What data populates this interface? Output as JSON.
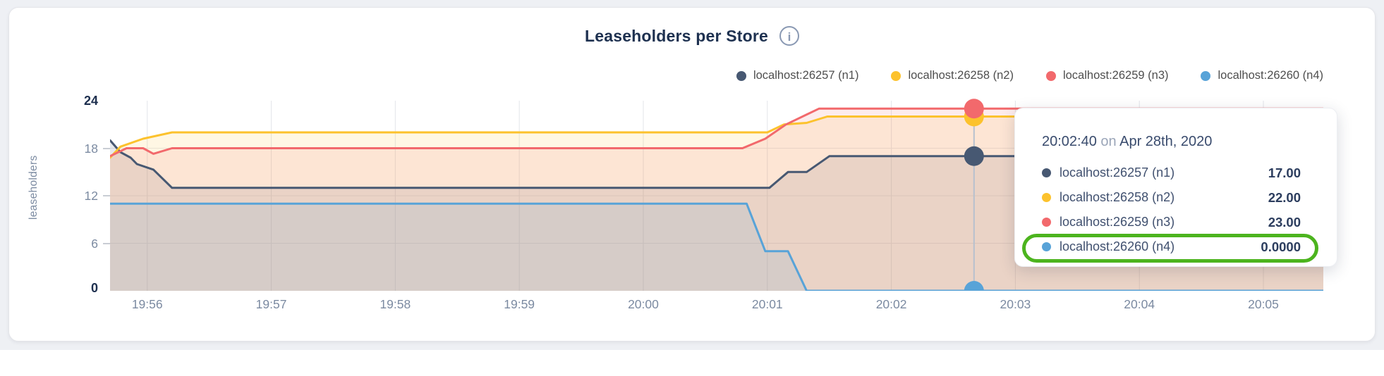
{
  "header": {
    "title": "Leaseholders per Store",
    "info_glyph": "i"
  },
  "chart_data": {
    "type": "area",
    "title": "Leaseholders per Store",
    "xlabel": "",
    "ylabel": "leaseholders",
    "ylim": [
      0,
      24
    ],
    "y_ticks": [
      0,
      6,
      12,
      18,
      24
    ],
    "y_ticks_emphasized": [
      0,
      24
    ],
    "grid": true,
    "legend_position": "top-right",
    "x_tick_labels": [
      "19:56",
      "19:57",
      "19:58",
      "19:59",
      "20:00",
      "20:01",
      "20:02",
      "20:03",
      "20:04",
      "20:05"
    ],
    "x_tick_seconds": [
      60,
      120,
      180,
      240,
      300,
      360,
      420,
      480,
      540,
      600
    ],
    "x_domain_seconds": [
      42,
      629
    ],
    "series": [
      {
        "name": "localhost:26257 (n1)",
        "color": "#475872",
        "points": [
          [
            42,
            19
          ],
          [
            47,
            17.5
          ],
          [
            52,
            16.8
          ],
          [
            55,
            16
          ],
          [
            63,
            15.3
          ],
          [
            72,
            13
          ],
          [
            361,
            13
          ],
          [
            370,
            15
          ],
          [
            379,
            15
          ],
          [
            390,
            17
          ],
          [
            629,
            17
          ]
        ]
      },
      {
        "name": "localhost:26258 (n2)",
        "color": "#fcc22d",
        "points": [
          [
            42,
            16.8
          ],
          [
            47,
            18.2
          ],
          [
            58,
            19.2
          ],
          [
            72,
            20
          ],
          [
            360,
            20
          ],
          [
            368,
            21
          ],
          [
            379,
            21.2
          ],
          [
            389,
            22
          ],
          [
            629,
            22
          ]
        ]
      },
      {
        "name": "localhost:26259 (n3)",
        "color": "#f2696c",
        "points": [
          [
            42,
            17
          ],
          [
            50,
            18
          ],
          [
            58,
            18
          ],
          [
            63,
            17.3
          ],
          [
            72,
            18
          ],
          [
            348,
            18
          ],
          [
            359,
            19.2
          ],
          [
            369,
            21
          ],
          [
            385,
            23
          ],
          [
            629,
            23
          ]
        ]
      },
      {
        "name": "localhost:26260 (n4)",
        "color": "#58a3d8",
        "points": [
          [
            42,
            11
          ],
          [
            350,
            11
          ],
          [
            359,
            5
          ],
          [
            370,
            5
          ],
          [
            379,
            0
          ],
          [
            629,
            0
          ]
        ]
      }
    ],
    "hover": {
      "time_seconds": 460,
      "time_label": "20:02:40",
      "values": [
        17,
        22,
        23,
        0
      ]
    }
  },
  "tooltip": {
    "time": "20:02:40",
    "connector": "on",
    "date": "Apr 28th, 2020",
    "rows": [
      {
        "name": "localhost:26257 (n1)",
        "value": "17.00",
        "color": "#475872",
        "highlighted": false
      },
      {
        "name": "localhost:26258 (n2)",
        "value": "22.00",
        "color": "#fcc22d",
        "highlighted": false
      },
      {
        "name": "localhost:26259 (n3)",
        "value": "23.00",
        "color": "#f2696c",
        "highlighted": false
      },
      {
        "name": "localhost:26260 (n4)",
        "value": "0.0000",
        "color": "#58a3d8",
        "highlighted": true
      }
    ],
    "highlight_color": "#4cb41e"
  },
  "colors": {
    "page_bg": "#eef0f4",
    "card_bg": "#ffffff",
    "title_text": "#1e3150",
    "tick_text": "#7b8aa1",
    "tick_text_emphasized": "#1d2f4e",
    "grid_line": "#e3e5ea",
    "hover_line": "#b7c1ce"
  }
}
